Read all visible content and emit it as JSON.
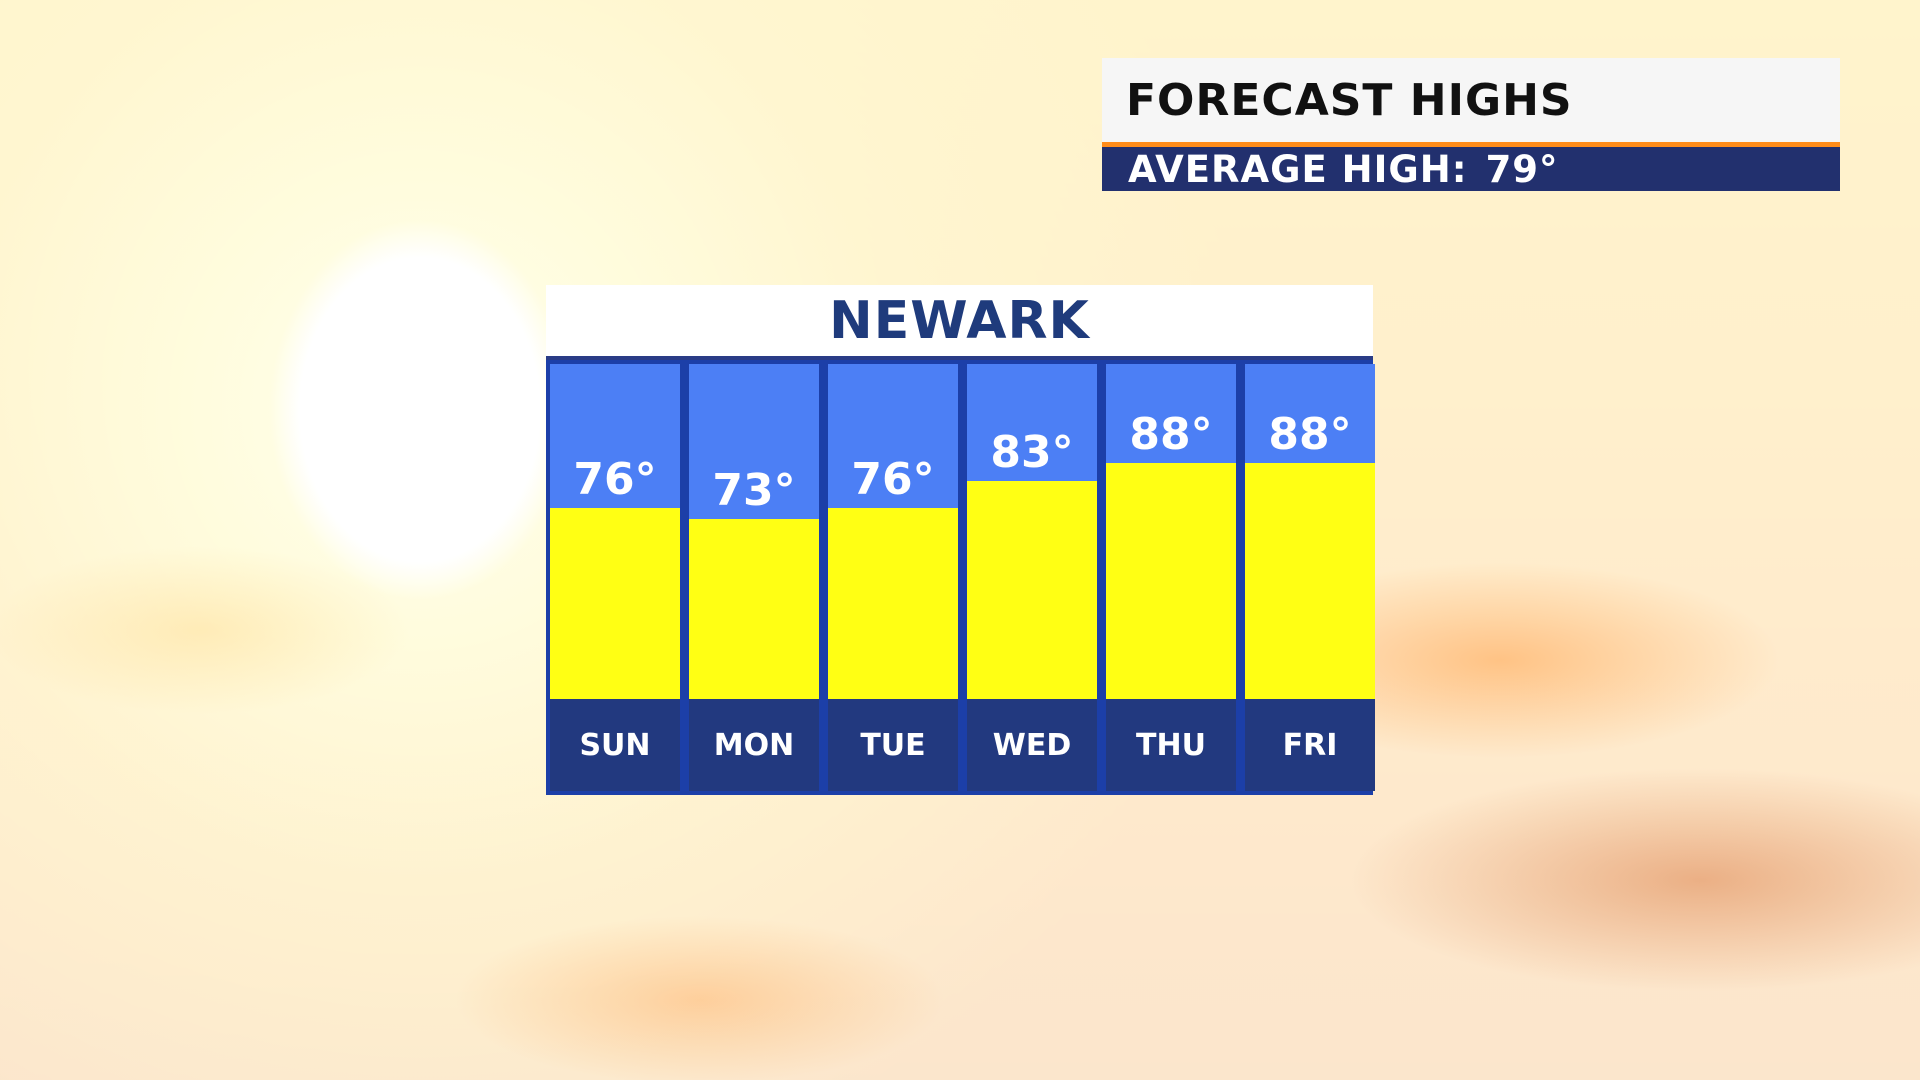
{
  "header": {
    "title": "FORECAST HIGHS",
    "average_label": "AVERAGE HIGH:",
    "average_value": "79°"
  },
  "colors": {
    "column_bg": "#4c7ff5",
    "bar_fill": "#ffff14",
    "day_bg": "#22397f",
    "title_text": "#1f3b7c",
    "subheader_bg": "#22306e"
  },
  "chart_data": {
    "type": "bar",
    "title": "NEWARK",
    "categories": [
      "SUN",
      "MON",
      "TUE",
      "WED",
      "THU",
      "FRI"
    ],
    "values": [
      76,
      73,
      76,
      83,
      88,
      88
    ],
    "labels": [
      "76°",
      "73°",
      "76°",
      "83°",
      "88°",
      "88°"
    ],
    "unit": "°"
  }
}
